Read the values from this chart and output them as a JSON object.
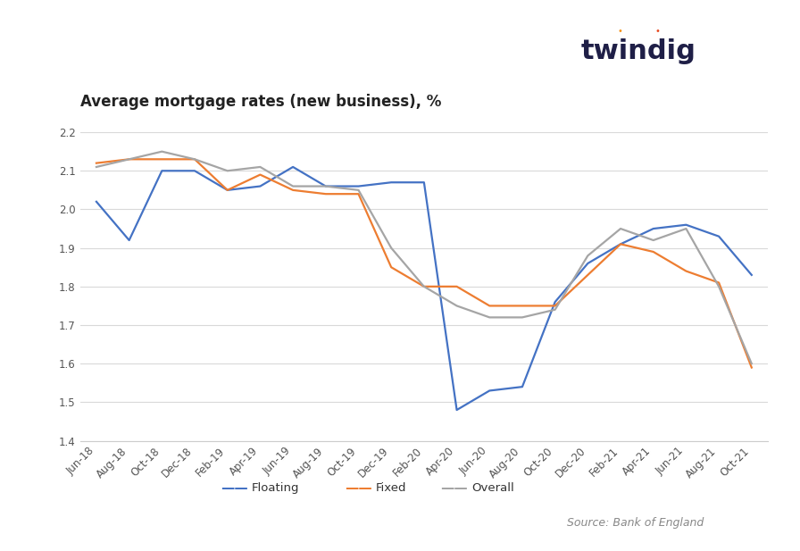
{
  "title": "Average mortgage rates (new business), %",
  "source": "Source: Bank of England",
  "twindig_text": "twindig",
  "ylim": [
    1.4,
    2.2
  ],
  "yticks": [
    1.4,
    1.5,
    1.6,
    1.7,
    1.8,
    1.9,
    2.0,
    2.1,
    2.2
  ],
  "x_labels": [
    "Jun-18",
    "Aug-18",
    "Oct-18",
    "Dec-18",
    "Feb-19",
    "Apr-19",
    "Jun-19",
    "Aug-19",
    "Oct-19",
    "Dec-19",
    "Feb-20",
    "Apr-20",
    "Jun-20",
    "Aug-20",
    "Oct-20",
    "Dec-20",
    "Feb-21",
    "Apr-21",
    "Jun-21",
    "Aug-21",
    "Oct-21"
  ],
  "floating": [
    2.02,
    1.92,
    2.1,
    2.1,
    2.05,
    2.06,
    2.11,
    2.06,
    2.06,
    2.07,
    2.07,
    1.48,
    1.53,
    1.54,
    1.76,
    1.86,
    1.91,
    1.95,
    1.96,
    1.93,
    1.83
  ],
  "fixed": [
    2.12,
    2.13,
    2.13,
    2.13,
    2.05,
    2.09,
    2.05,
    2.04,
    2.04,
    1.85,
    1.8,
    1.8,
    1.75,
    1.75,
    1.75,
    1.83,
    1.91,
    1.89,
    1.84,
    1.81,
    1.59
  ],
  "overall": [
    2.11,
    2.13,
    2.15,
    2.13,
    2.1,
    2.11,
    2.06,
    2.06,
    2.05,
    1.9,
    1.8,
    1.75,
    1.72,
    1.72,
    1.74,
    1.88,
    1.95,
    1.92,
    1.95,
    1.8,
    1.6
  ],
  "floating_color": "#4472C4",
  "fixed_color": "#ED7D31",
  "overall_color": "#A5A5A5",
  "background_color": "#FFFFFF",
  "grid_color": "#D9D9D9",
  "twindig_color": "#1F1F47",
  "twindig_dot1_color": "#F5941D",
  "twindig_dot2_color": "#E84B23"
}
